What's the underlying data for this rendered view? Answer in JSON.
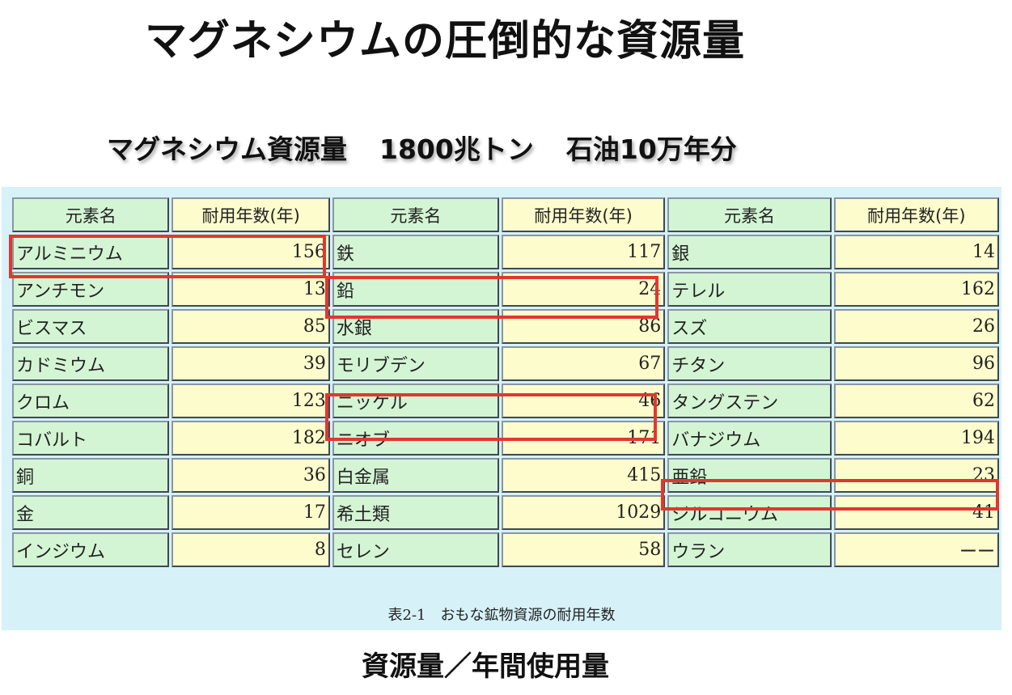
{
  "title": "マグネシウムの圧倒的な資源量",
  "subtitle": {
    "resource_label": "マグネシウム資源量",
    "amount": "1800兆トン",
    "oil_equivalent": "石油10万年分"
  },
  "table": {
    "headers": {
      "element": "元素名",
      "years": "耐用年数(年)"
    },
    "rows": [
      [
        {
          "name": "アルミニウム",
          "years": "156"
        },
        {
          "name": "鉄",
          "years": "117"
        },
        {
          "name": "銀",
          "years": "14"
        }
      ],
      [
        {
          "name": "アンチモン",
          "years": "13"
        },
        {
          "name": "鉛",
          "years": "24"
        },
        {
          "name": "テレル",
          "years": "162"
        }
      ],
      [
        {
          "name": "ビスマス",
          "years": "85"
        },
        {
          "name": "水銀",
          "years": "86"
        },
        {
          "name": "スズ",
          "years": "26"
        }
      ],
      [
        {
          "name": "カドミウム",
          "years": "39"
        },
        {
          "name": "モリブデン",
          "years": "67"
        },
        {
          "name": "チタン",
          "years": "96"
        }
      ],
      [
        {
          "name": "クロム",
          "years": "123"
        },
        {
          "name": "ニッケル",
          "years": "46"
        },
        {
          "name": "タングステン",
          "years": "62"
        }
      ],
      [
        {
          "name": "コバルト",
          "years": "182"
        },
        {
          "name": "ニオブ",
          "years": "171"
        },
        {
          "name": "バナジウム",
          "years": "194"
        }
      ],
      [
        {
          "name": "銅",
          "years": "36"
        },
        {
          "name": "白金属",
          "years": "415"
        },
        {
          "name": "亜鉛",
          "years": "23"
        }
      ],
      [
        {
          "name": "金",
          "years": "17"
        },
        {
          "name": "希土類",
          "years": "1029"
        },
        {
          "name": "ジルコニウム",
          "years": "41"
        }
      ],
      [
        {
          "name": "インジウム",
          "years": "8"
        },
        {
          "name": "セレン",
          "years": "58"
        },
        {
          "name": "ウラン",
          "years": "ーー"
        }
      ]
    ],
    "caption": "表2-1　おもな鉱物資源の耐用年数",
    "highlighted": [
      "アルミニウム",
      "鉛",
      "ニッケル",
      "亜鉛"
    ],
    "colors": {
      "name_cell": "#d4f5d4",
      "years_cell": "#fdfccc",
      "panel": "#d6f1f8",
      "highlight": "#e0382f"
    }
  },
  "footer": "資源量／年間使用量"
}
